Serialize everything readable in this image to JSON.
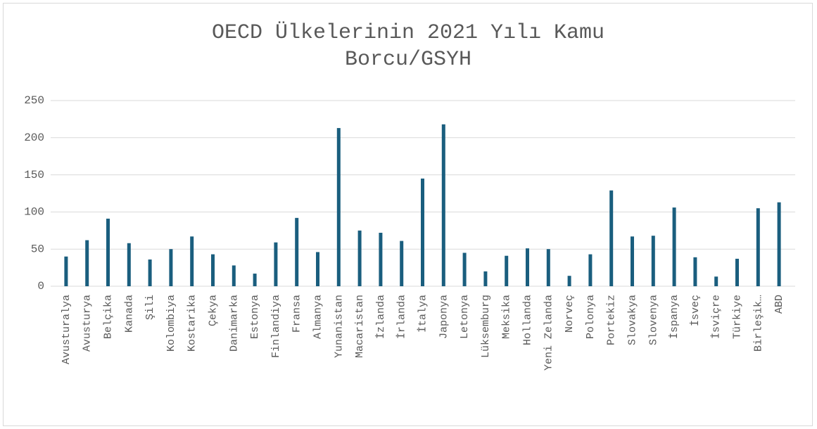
{
  "chart_data": {
    "type": "bar",
    "title": "OECD Ülkelerinin 2021 Yılı Kamu Borcu/GSYH",
    "categories": [
      "Avusturalya",
      "Avusturya",
      "Belçika",
      "Kanada",
      "Şili",
      "Kolombiya",
      "Kostarika",
      "Çekya",
      "Danimarka",
      "Estonya",
      "Finlandiya",
      "Fransa",
      "Almanya",
      "Yunanistan",
      "Macaristan",
      "İzlanda",
      "İrlanda",
      "İtalya",
      "Japonya",
      "Letonya",
      "Lüksemburg",
      "Meksika",
      "Hollanda",
      "Yeni Zelanda",
      "Norveç",
      "Polonya",
      "Portekiz",
      "Slovakya",
      "Slovenya",
      "İspanya",
      "İsveç",
      "İsviçre",
      "Türkiye",
      "Birleşik…",
      "ABD"
    ],
    "values": [
      40,
      62,
      91,
      58,
      36,
      50,
      67,
      43,
      28,
      17,
      59,
      92,
      46,
      213,
      75,
      72,
      61,
      145,
      218,
      45,
      20,
      41,
      51,
      50,
      14,
      43,
      129,
      67,
      68,
      106,
      39,
      13,
      37,
      105,
      113
    ],
    "color": "#1a5e7e",
    "ylim": [
      0,
      250
    ],
    "yticks": [
      0,
      50,
      100,
      150,
      200,
      250
    ],
    "grid": true
  }
}
